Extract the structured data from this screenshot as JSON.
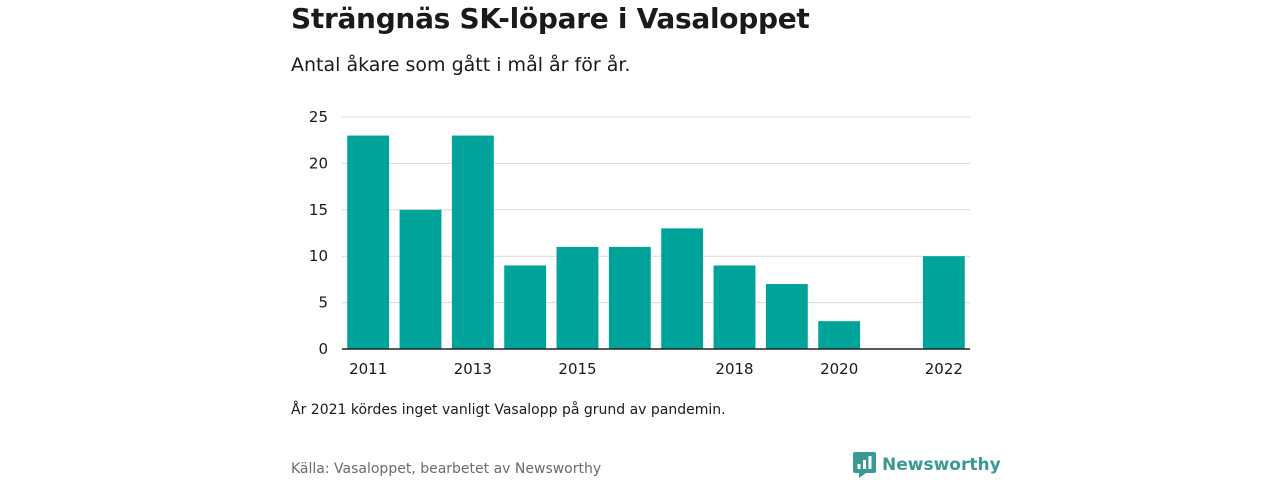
{
  "header": {
    "title": "Strängnäs SK-löpare i Vasaloppet",
    "subtitle": "Antal åkare som gått i mål år för år."
  },
  "footer": {
    "note": "År 2021 kördes inget vanligt Vasalopp på grund av pandemin.",
    "source": "Källa: Vasaloppet, bearbetet av Newsworthy",
    "brand": "Newsworthy",
    "brand_icon": "newsworthy-logo-icon"
  },
  "colors": {
    "bar": "#00a39a",
    "brand": "#3a9a93",
    "grid": "#d9d9d9"
  },
  "chart_data": {
    "type": "bar",
    "categories": [
      "2011",
      "2012",
      "2013",
      "2014",
      "2015",
      "2016",
      "2017",
      "2018",
      "2019",
      "2020",
      "2021",
      "2022"
    ],
    "values": [
      23,
      15,
      23,
      9,
      11,
      11,
      13,
      9,
      7,
      3,
      null,
      10
    ],
    "x_tick_labels": [
      "2011",
      "2013",
      "2015",
      "2018",
      "2020",
      "2022"
    ],
    "y_ticks": [
      0,
      5,
      10,
      15,
      20,
      25
    ],
    "ylim": [
      0,
      25
    ],
    "grid": true,
    "legend": "none"
  }
}
